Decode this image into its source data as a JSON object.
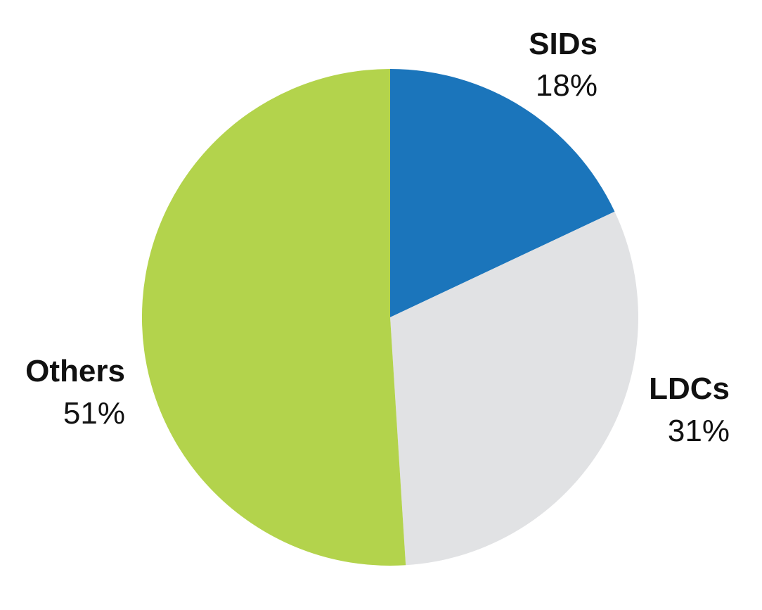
{
  "chart_data": {
    "type": "pie",
    "title": "",
    "slices": [
      {
        "name": "SIDs",
        "value": 18,
        "label": "18%",
        "color": "#1b75bb"
      },
      {
        "name": "LDCs",
        "value": 31,
        "label": "31%",
        "color": "#e1e2e4"
      },
      {
        "name": "Others",
        "value": 51,
        "label": "51%",
        "color": "#b3d34c"
      }
    ],
    "start_angle_deg": 0,
    "direction": "clockwise",
    "legend": "none"
  }
}
